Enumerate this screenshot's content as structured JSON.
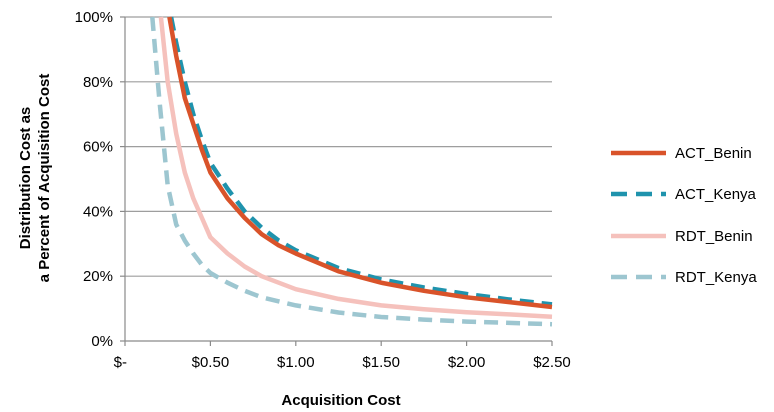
{
  "chart_data": {
    "type": "line",
    "xlabel": "Acquisition Cost",
    "ylabel_lines": [
      "Distribution Cost as",
      "a Percent of Acquisition Cost"
    ],
    "x_ticks": [
      {
        "value": 0,
        "label": "$-"
      },
      {
        "value": 0.5,
        "label": "$0.50"
      },
      {
        "value": 1.0,
        "label": "$1.00"
      },
      {
        "value": 1.5,
        "label": "$1.50"
      },
      {
        "value": 2.0,
        "label": "$2.00"
      },
      {
        "value": 2.5,
        "label": "$2.50"
      }
    ],
    "y_ticks": [
      {
        "value": 0,
        "label": "0%"
      },
      {
        "value": 20,
        "label": "20%"
      },
      {
        "value": 40,
        "label": "40%"
      },
      {
        "value": 60,
        "label": "60%"
      },
      {
        "value": 80,
        "label": "80%"
      },
      {
        "value": 100,
        "label": "100%"
      }
    ],
    "xlim": [
      0,
      2.5
    ],
    "ylim": [
      0,
      100
    ],
    "grid": "horizontal",
    "legend_position": "right",
    "series": [
      {
        "name": "ACT_Benin",
        "color": "#d9532a",
        "dash": "solid",
        "x": [
          0.26,
          0.3,
          0.35,
          0.4,
          0.45,
          0.5,
          0.6,
          0.7,
          0.8,
          0.9,
          1.0,
          1.25,
          1.5,
          1.75,
          2.0,
          2.25,
          2.5
        ],
        "y": [
          100,
          88,
          75,
          67,
          59,
          52,
          44,
          38,
          33,
          29.5,
          27,
          21.5,
          18,
          15.5,
          13.5,
          12,
          10.5
        ]
      },
      {
        "name": "ACT_Kenya",
        "color": "#1f93ad",
        "dash": "dashed",
        "x": [
          0.27,
          0.3,
          0.35,
          0.4,
          0.45,
          0.5,
          0.6,
          0.7,
          0.8,
          0.9,
          1.0,
          1.25,
          1.5,
          1.75,
          2.0,
          2.25,
          2.5
        ],
        "y": [
          100,
          92,
          80,
          70,
          62,
          55,
          47,
          40,
          35,
          31,
          28,
          22.5,
          19,
          16.5,
          14.5,
          12.8,
          11.3
        ]
      },
      {
        "name": "RDT_Benin",
        "color": "#f5c1bc",
        "dash": "solid",
        "x": [
          0.21,
          0.25,
          0.3,
          0.35,
          0.4,
          0.45,
          0.5,
          0.6,
          0.7,
          0.8,
          1.0,
          1.25,
          1.5,
          1.75,
          2.0,
          2.25,
          2.5
        ],
        "y": [
          100,
          80,
          64,
          52,
          44,
          38,
          32,
          27,
          23,
          20,
          16,
          13,
          11,
          9.8,
          8.9,
          8.2,
          7.5
        ]
      },
      {
        "name": "RDT_Kenya",
        "color": "#9dc6d0",
        "dash": "dashed",
        "x": [
          0.16,
          0.2,
          0.25,
          0.3,
          0.35,
          0.4,
          0.45,
          0.5,
          0.6,
          0.7,
          0.8,
          1.0,
          1.25,
          1.5,
          1.75,
          2.0,
          2.25,
          2.5
        ],
        "y": [
          100,
          75,
          48,
          36,
          31,
          27,
          23.5,
          21,
          18,
          15.5,
          13.5,
          11,
          8.8,
          7.4,
          6.6,
          6,
          5.6,
          5.2
        ]
      }
    ]
  }
}
